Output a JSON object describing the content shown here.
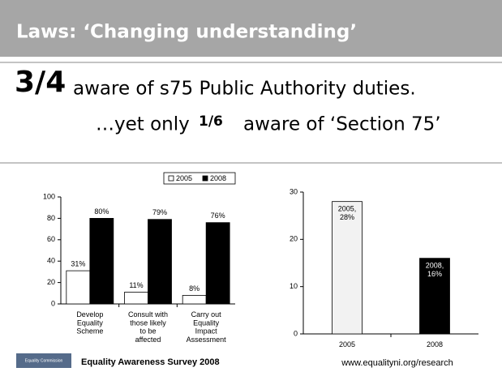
{
  "header": {
    "title": "Laws: ‘Changing understanding’"
  },
  "headline": {
    "fraction1": "3/4",
    "line1": "aware of s75 Public Authority duties.",
    "line2_start": "…yet only",
    "fraction2": "1/6",
    "line2_end": "aware of ‘Section 75’"
  },
  "chart_data": [
    {
      "type": "bar",
      "categories": [
        "Develop Equality Scheme",
        "Consult with those likely to be affected",
        "Carry out Equality Impact Assessment"
      ],
      "series": [
        {
          "name": "2005",
          "color": "#ffffff",
          "values": [
            31,
            11,
            8
          ],
          "value_labels": [
            "31%",
            "11%",
            "8%"
          ]
        },
        {
          "name": "2008",
          "color": "#000000",
          "values": [
            80,
            79,
            76
          ],
          "value_labels": [
            "80%",
            "79%",
            "76%"
          ]
        }
      ],
      "ylim": [
        0,
        100
      ],
      "yticks": [
        0,
        20,
        40,
        60,
        80,
        100
      ],
      "legend": "top"
    },
    {
      "type": "bar",
      "categories": [
        "2005",
        "2008"
      ],
      "series": [
        {
          "colors": [
            "#f2f2f2",
            "#000000"
          ],
          "values": [
            28,
            16
          ],
          "value_labels": [
            "2005, 28%",
            "2008, 16%"
          ]
        }
      ],
      "ylim": [
        0,
        30
      ],
      "yticks": [
        0,
        10,
        20,
        30
      ]
    }
  ],
  "footer": {
    "logo": "Equality Commission",
    "source": "Equality Awareness Survey 2008",
    "url": "www.equalityni.org/research"
  }
}
